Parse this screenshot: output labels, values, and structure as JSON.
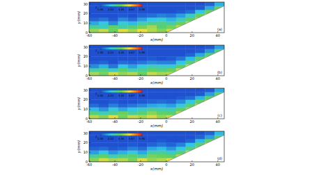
{
  "chart_data": [
    {
      "type": "heatmap",
      "panel_label": "(a)",
      "xlabel": "x(mm)",
      "ylabel": "y(mm)",
      "xlim": [
        -60,
        45
      ],
      "ylim": [
        0,
        32
      ],
      "xticks": [
        -60,
        -40,
        -20,
        0,
        20,
        40
      ],
      "yticks": [
        0,
        10,
        20,
        30
      ],
      "grid": false,
      "colorbar": {
        "label": "T",
        "range": [
          1,
          5.9
        ],
        "ticks": [
          {
            "value": 1,
            "label": "1.00"
          },
          {
            "value": 2.22,
            "label": "2.22"
          },
          {
            "value": 3.45,
            "label": "3.45"
          },
          {
            "value": 4.67,
            "label": "4.67"
          },
          {
            "value": 5.9,
            "label": "5.90"
          }
        ]
      },
      "wall": {
        "x": [
          -60,
          0,
          45
        ],
        "y": [
          0,
          0,
          28
        ]
      },
      "x_bins": [
        -60,
        -52.5,
        -45,
        -37.5,
        -30,
        -22.5,
        -15,
        -7.5,
        0,
        7.5,
        15,
        22.5,
        30,
        37.5,
        45
      ],
      "y_bins": [
        0,
        4,
        8,
        12,
        16,
        20,
        24,
        28,
        32
      ],
      "z": [
        [
          3.8,
          4.1,
          3.5,
          4.3,
          3.9,
          4.4,
          4.0,
          3.7,
          4.2,
          null,
          null,
          null,
          null,
          null
        ],
        [
          3.0,
          2.6,
          3.4,
          2.8,
          3.2,
          3.6,
          3.9,
          3.3,
          3.6,
          4.1,
          null,
          null,
          null,
          null
        ],
        [
          1.9,
          2.3,
          1.6,
          2.4,
          2.1,
          2.7,
          3.0,
          3.1,
          2.8,
          3.5,
          4.0,
          null,
          null,
          null
        ],
        [
          1.2,
          1.4,
          1.1,
          1.6,
          1.3,
          1.8,
          2.2,
          2.4,
          2.0,
          2.6,
          3.4,
          4.1,
          null,
          null
        ],
        [
          1.0,
          1.0,
          1.0,
          1.1,
          1.0,
          1.2,
          1.3,
          1.5,
          1.4,
          1.8,
          2.5,
          3.5,
          4.0,
          null
        ],
        [
          1.0,
          1.0,
          1.0,
          1.0,
          1.0,
          1.0,
          1.0,
          1.0,
          1.0,
          1.1,
          1.3,
          2.2,
          3.5,
          4.2
        ],
        [
          1.0,
          1.0,
          1.0,
          1.0,
          1.0,
          1.0,
          1.0,
          1.0,
          1.0,
          1.0,
          1.0,
          1.1,
          1.9,
          3.4
        ],
        [
          1.0,
          1.0,
          1.0,
          1.0,
          1.0,
          1.0,
          1.0,
          1.0,
          1.0,
          1.0,
          1.0,
          1.0,
          1.2,
          2.0
        ]
      ]
    },
    {
      "type": "heatmap",
      "panel_label": "(b)",
      "xlabel": "x(mm)",
      "ylabel": "y(mm)",
      "xlim": [
        -60,
        45
      ],
      "ylim": [
        0,
        32
      ],
      "xticks": [
        -60,
        -40,
        -20,
        0,
        20,
        40
      ],
      "yticks": [
        0,
        10,
        20,
        30
      ],
      "grid": false,
      "colorbar": {
        "label": "T",
        "range": [
          1,
          5.9
        ],
        "ticks": [
          {
            "value": 1,
            "label": "1.00"
          },
          {
            "value": 2.22,
            "label": "2.22"
          },
          {
            "value": 3.45,
            "label": "3.45"
          },
          {
            "value": 4.67,
            "label": "4.67"
          },
          {
            "value": 5.9,
            "label": "5.90"
          }
        ]
      },
      "wall": {
        "x": [
          -60,
          0,
          45
        ],
        "y": [
          0,
          0,
          28
        ]
      },
      "x_bins": [
        -60,
        -52.5,
        -45,
        -37.5,
        -30,
        -22.5,
        -15,
        -7.5,
        0,
        7.5,
        15,
        22.5,
        30,
        37.5,
        45
      ],
      "y_bins": [
        0,
        4,
        8,
        12,
        16,
        20,
        24,
        28,
        32
      ],
      "z": [
        [
          3.9,
          3.6,
          4.2,
          3.8,
          4.0,
          3.5,
          4.1,
          3.9,
          4.0,
          null,
          null,
          null,
          null,
          null
        ],
        [
          2.8,
          3.1,
          2.5,
          3.3,
          2.7,
          3.0,
          3.4,
          3.2,
          3.5,
          4.2,
          null,
          null,
          null,
          null
        ],
        [
          1.6,
          2.0,
          1.4,
          2.2,
          1.8,
          2.3,
          2.6,
          2.5,
          2.4,
          3.3,
          4.1,
          null,
          null,
          null
        ],
        [
          1.1,
          1.2,
          1.0,
          1.3,
          1.2,
          1.4,
          1.6,
          1.5,
          1.5,
          2.2,
          3.2,
          4.0,
          null,
          null
        ],
        [
          1.0,
          1.0,
          1.0,
          1.0,
          1.0,
          1.0,
          1.1,
          1.0,
          1.1,
          1.4,
          2.1,
          3.3,
          4.1,
          null
        ],
        [
          1.0,
          1.0,
          1.0,
          1.0,
          1.0,
          1.0,
          1.0,
          1.0,
          1.0,
          1.0,
          1.2,
          1.9,
          3.2,
          4.0
        ],
        [
          1.0,
          1.0,
          1.0,
          1.0,
          1.0,
          1.0,
          1.0,
          1.0,
          1.0,
          1.0,
          1.0,
          1.1,
          1.7,
          3.1
        ],
        [
          1.0,
          1.0,
          1.0,
          1.0,
          1.0,
          1.0,
          1.0,
          1.0,
          1.0,
          1.0,
          1.0,
          1.0,
          1.1,
          1.8
        ]
      ]
    },
    {
      "type": "heatmap",
      "panel_label": "(c)",
      "xlabel": "x(mm)",
      "ylabel": "y(mm)",
      "xlim": [
        -60,
        45
      ],
      "ylim": [
        0,
        32
      ],
      "xticks": [
        -60,
        -40,
        -20,
        0,
        20,
        40
      ],
      "yticks": [
        0,
        10,
        20,
        30
      ],
      "grid": false,
      "colorbar": {
        "label": "T",
        "range": [
          1,
          5.9
        ],
        "ticks": [
          {
            "value": 1,
            "label": "1.00"
          },
          {
            "value": 2.22,
            "label": "2.22"
          },
          {
            "value": 3.45,
            "label": "3.45"
          },
          {
            "value": 4.67,
            "label": "4.67"
          },
          {
            "value": 5.9,
            "label": "5.90"
          }
        ]
      },
      "wall": {
        "x": [
          -60,
          0,
          45
        ],
        "y": [
          0,
          0,
          28
        ]
      },
      "x_bins": [
        -60,
        -52.5,
        -45,
        -37.5,
        -30,
        -22.5,
        -15,
        -7.5,
        0,
        7.5,
        15,
        22.5,
        30,
        37.5,
        45
      ],
      "y_bins": [
        0,
        4,
        8,
        12,
        16,
        20,
        24,
        28,
        32
      ],
      "z": [
        [
          4.0,
          3.7,
          4.3,
          3.6,
          4.1,
          3.9,
          4.2,
          3.8,
          4.1,
          null,
          null,
          null,
          null,
          null
        ],
        [
          3.2,
          2.7,
          3.0,
          3.5,
          2.9,
          3.3,
          3.7,
          3.4,
          3.3,
          4.0,
          null,
          null,
          null,
          null
        ],
        [
          2.1,
          1.7,
          2.4,
          1.9,
          2.2,
          2.5,
          2.9,
          2.7,
          2.6,
          3.4,
          3.9,
          null,
          null,
          null
        ],
        [
          1.3,
          1.1,
          1.5,
          1.2,
          1.4,
          1.6,
          1.9,
          2.0,
          1.8,
          2.4,
          3.3,
          4.2,
          null,
          null
        ],
        [
          1.0,
          1.0,
          1.1,
          1.0,
          1.0,
          1.1,
          1.2,
          1.3,
          1.2,
          1.6,
          2.3,
          3.4,
          4.1,
          null
        ],
        [
          1.0,
          1.0,
          1.0,
          1.0,
          1.0,
          1.0,
          1.0,
          1.0,
          1.0,
          1.1,
          1.3,
          2.0,
          3.3,
          4.1
        ],
        [
          1.0,
          1.0,
          1.0,
          1.0,
          1.0,
          1.0,
          1.0,
          1.0,
          1.0,
          1.0,
          1.0,
          1.1,
          1.8,
          3.3
        ],
        [
          1.0,
          1.0,
          1.0,
          1.0,
          1.0,
          1.0,
          1.0,
          1.0,
          1.0,
          1.0,
          1.0,
          1.0,
          1.1,
          1.9
        ]
      ]
    },
    {
      "type": "heatmap",
      "panel_label": "(d)",
      "xlabel": "x(mm)",
      "ylabel": "y(mm)",
      "xlim": [
        -60,
        45
      ],
      "ylim": [
        0,
        32
      ],
      "xticks": [
        -60,
        -40,
        -20,
        0,
        20,
        40
      ],
      "yticks": [
        0,
        10,
        20,
        30
      ],
      "grid": false,
      "colorbar": {
        "label": "T",
        "range": [
          1,
          5.9
        ],
        "ticks": [
          {
            "value": 1,
            "label": "1.00"
          },
          {
            "value": 2.22,
            "label": "2.22"
          },
          {
            "value": 3.45,
            "label": "3.45"
          },
          {
            "value": 4.67,
            "label": "4.67"
          },
          {
            "value": 5.9,
            "label": "5.90"
          }
        ]
      },
      "wall": {
        "x": [
          -60,
          0,
          45
        ],
        "y": [
          0,
          0,
          28
        ]
      },
      "x_bins": [
        -60,
        -52.5,
        -45,
        -37.5,
        -30,
        -22.5,
        -15,
        -7.5,
        0,
        7.5,
        15,
        22.5,
        30,
        37.5,
        45
      ],
      "y_bins": [
        0,
        4,
        8,
        12,
        16,
        20,
        24,
        28,
        32
      ],
      "z": [
        [
          3.7,
          4.2,
          3.9,
          4.0,
          3.6,
          4.3,
          3.8,
          4.0,
          4.3,
          null,
          null,
          null,
          null,
          null
        ],
        [
          2.9,
          3.4,
          2.7,
          3.1,
          3.3,
          2.8,
          3.6,
          3.5,
          3.4,
          4.0,
          null,
          null,
          null,
          null
        ],
        [
          1.8,
          2.2,
          1.7,
          2.0,
          2.4,
          1.9,
          2.8,
          2.9,
          2.5,
          3.2,
          4.1,
          null,
          null,
          null
        ],
        [
          1.2,
          1.3,
          1.1,
          1.2,
          1.5,
          1.3,
          1.9,
          2.1,
          1.7,
          2.3,
          3.1,
          3.9,
          null,
          null
        ],
        [
          1.0,
          1.0,
          1.0,
          1.0,
          1.1,
          1.0,
          1.2,
          1.4,
          1.2,
          1.5,
          2.2,
          3.2,
          4.2,
          null
        ],
        [
          1.0,
          1.0,
          1.0,
          1.0,
          1.0,
          1.0,
          1.0,
          1.1,
          1.0,
          1.0,
          1.2,
          2.1,
          3.4,
          4.0
        ],
        [
          1.0,
          1.0,
          1.0,
          1.0,
          1.0,
          1.0,
          1.0,
          1.0,
          1.0,
          1.0,
          1.0,
          1.2,
          1.8,
          3.2
        ],
        [
          1.0,
          1.0,
          1.0,
          1.0,
          1.0,
          1.0,
          1.0,
          1.0,
          1.0,
          1.0,
          1.0,
          1.0,
          1.2,
          2.1
        ]
      ]
    }
  ]
}
